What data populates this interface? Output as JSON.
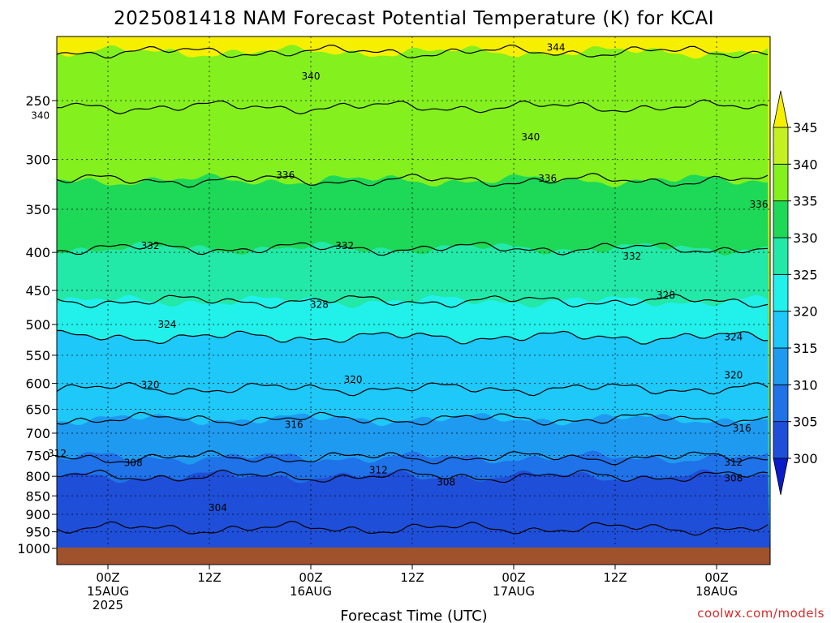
{
  "chart_data": {
    "type": "contour-fill",
    "title": "2025081418 NAM Forecast Potential Temperature (K) for KCAI",
    "xlabel": "Forecast Time (UTC)",
    "credit": "coolwx.com/models",
    "y_axis": {
      "quantity": "pressure (hPa)",
      "scale": "log",
      "reversed": true,
      "ticks": [
        250,
        300,
        350,
        400,
        450,
        500,
        550,
        600,
        650,
        700,
        750,
        800,
        850,
        900,
        950,
        1000
      ],
      "range": [
        1000,
        200
      ]
    },
    "x_axis": {
      "range_hours": [
        -12,
        92
      ],
      "ticks": [
        {
          "hour": 0,
          "line1": "00Z",
          "line2": "15AUG",
          "line3": "2025"
        },
        {
          "hour": 12,
          "line1": "12Z",
          "line2": "",
          "line3": ""
        },
        {
          "hour": 24,
          "line1": "00Z",
          "line2": "16AUG",
          "line3": ""
        },
        {
          "hour": 36,
          "line1": "12Z",
          "line2": "",
          "line3": ""
        },
        {
          "hour": 48,
          "line1": "00Z",
          "line2": "17AUG",
          "line3": ""
        },
        {
          "hour": 60,
          "line1": "12Z",
          "line2": "",
          "line3": ""
        },
        {
          "hour": 72,
          "line1": "00Z",
          "line2": "18AUG",
          "line3": ""
        }
      ]
    },
    "grid": true,
    "colorbar": {
      "levels": [
        300,
        305,
        310,
        315,
        320,
        325,
        330,
        335,
        340,
        345
      ],
      "labels": [
        "300",
        "305",
        "310",
        "315",
        "320",
        "325",
        "330",
        "335",
        "340",
        "345"
      ],
      "colors": [
        "#1f4fd8",
        "#1f72e8",
        "#1e9bf0",
        "#1ec8f8",
        "#22f0ea",
        "#22e8a8",
        "#1ed858",
        "#84f01e",
        "#c2f022",
        "#f6f000",
        "#0a1cc8"
      ],
      "underflow_color": "#0a1cc8",
      "overflow_color": "#f6f000"
    },
    "contour_lines": [
      {
        "value": 304,
        "pressure": 940
      },
      {
        "value": 308,
        "pressure": 800
      },
      {
        "value": 312,
        "pressure": 755
      },
      {
        "value": 316,
        "pressure": 670
      },
      {
        "value": 320,
        "pressure": 610
      },
      {
        "value": 324,
        "pressure": 520
      },
      {
        "value": 328,
        "pressure": 465
      },
      {
        "value": 332,
        "pressure": 395
      },
      {
        "value": 336,
        "pressure": 320
      },
      {
        "value": 340,
        "pressure": 255
      },
      {
        "value": 344,
        "pressure": 215
      }
    ],
    "contour_labels": [
      {
        "text": "344",
        "hour": 53,
        "pressure": 212
      },
      {
        "text": "340",
        "hour": 24,
        "pressure": 232
      },
      {
        "text": "340",
        "hour": -8,
        "pressure": 262
      },
      {
        "text": "340",
        "hour": 50,
        "pressure": 280
      },
      {
        "text": "336",
        "hour": 21,
        "pressure": 315
      },
      {
        "text": "336",
        "hour": 52,
        "pressure": 318
      },
      {
        "text": "336",
        "hour": 77,
        "pressure": 345
      },
      {
        "text": "332",
        "hour": 5,
        "pressure": 392
      },
      {
        "text": "332",
        "hour": 28,
        "pressure": 392
      },
      {
        "text": "332",
        "hour": 62,
        "pressure": 405
      },
      {
        "text": "328",
        "hour": 25,
        "pressure": 470
      },
      {
        "text": "328",
        "hour": 66,
        "pressure": 457
      },
      {
        "text": "324",
        "hour": 7,
        "pressure": 500
      },
      {
        "text": "324",
        "hour": 74,
        "pressure": 520
      },
      {
        "text": "320",
        "hour": 5,
        "pressure": 603
      },
      {
        "text": "320",
        "hour": 29,
        "pressure": 593
      },
      {
        "text": "320",
        "hour": 74,
        "pressure": 585
      },
      {
        "text": "316",
        "hour": 22,
        "pressure": 682
      },
      {
        "text": "316",
        "hour": 75,
        "pressure": 690
      },
      {
        "text": "312",
        "hour": -6,
        "pressure": 745
      },
      {
        "text": "312",
        "hour": 32,
        "pressure": 785
      },
      {
        "text": "312",
        "hour": 74,
        "pressure": 766
      },
      {
        "text": "308",
        "hour": 3,
        "pressure": 767
      },
      {
        "text": "308",
        "hour": 40,
        "pressure": 815
      },
      {
        "text": "308",
        "hour": 74,
        "pressure": 805
      },
      {
        "text": "304",
        "hour": 13,
        "pressure": 882
      }
    ],
    "surface_color": "#a0522d"
  }
}
